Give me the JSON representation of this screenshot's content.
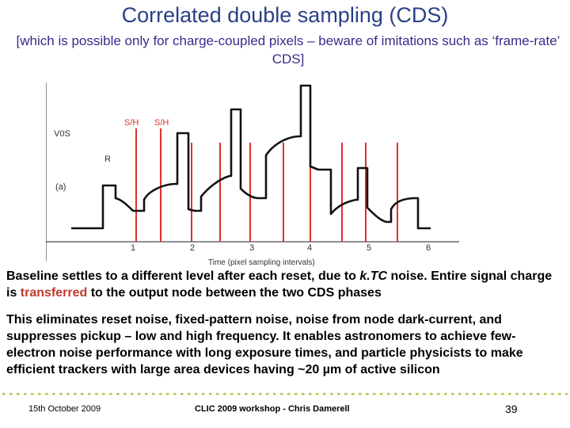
{
  "slide": {
    "title": "Correlated double sampling (CDS)",
    "subtitle": "[which is possible only for charge-coupled pixels – beware of imitations such as ‘frame-rate’ CDS]"
  },
  "figure": {
    "label_v0s": "V0S",
    "label_r": "R",
    "label_a": "(a)",
    "label_sh1": "S/H",
    "label_sh2": "S/H",
    "x_ticks": [
      "1",
      "2",
      "3",
      "4",
      "5",
      "6"
    ],
    "x_axis_label": "Time (pixel sampling intervals)"
  },
  "body": {
    "p1_a": "Baseline settles to a different level after each reset, due to ",
    "p1_ktc": "k.TC",
    "p1_b": "  noise.  Entire signal charge is ",
    "p1_transferred": "transferred",
    "p1_c": " to the output node between the two CDS phases",
    "p2": "This eliminates reset noise, fixed-pattern noise, noise from node dark-current, and suppresses pickup – low and high frequency.  It enables astronomers to achieve few-electron noise performance with long exposure times, and particle physicists to make efficient trackers with large area devices having ~20 µm of active silicon"
  },
  "footer": {
    "date": "15th October 2009",
    "center": "CLIC 2009 workshop - Chris Damerell",
    "page": "39"
  },
  "colors": {
    "title": "#2b3f86",
    "subtitle": "#3a2a8c",
    "sh_lines": "#e0302a",
    "highlight": "#c0392b"
  }
}
